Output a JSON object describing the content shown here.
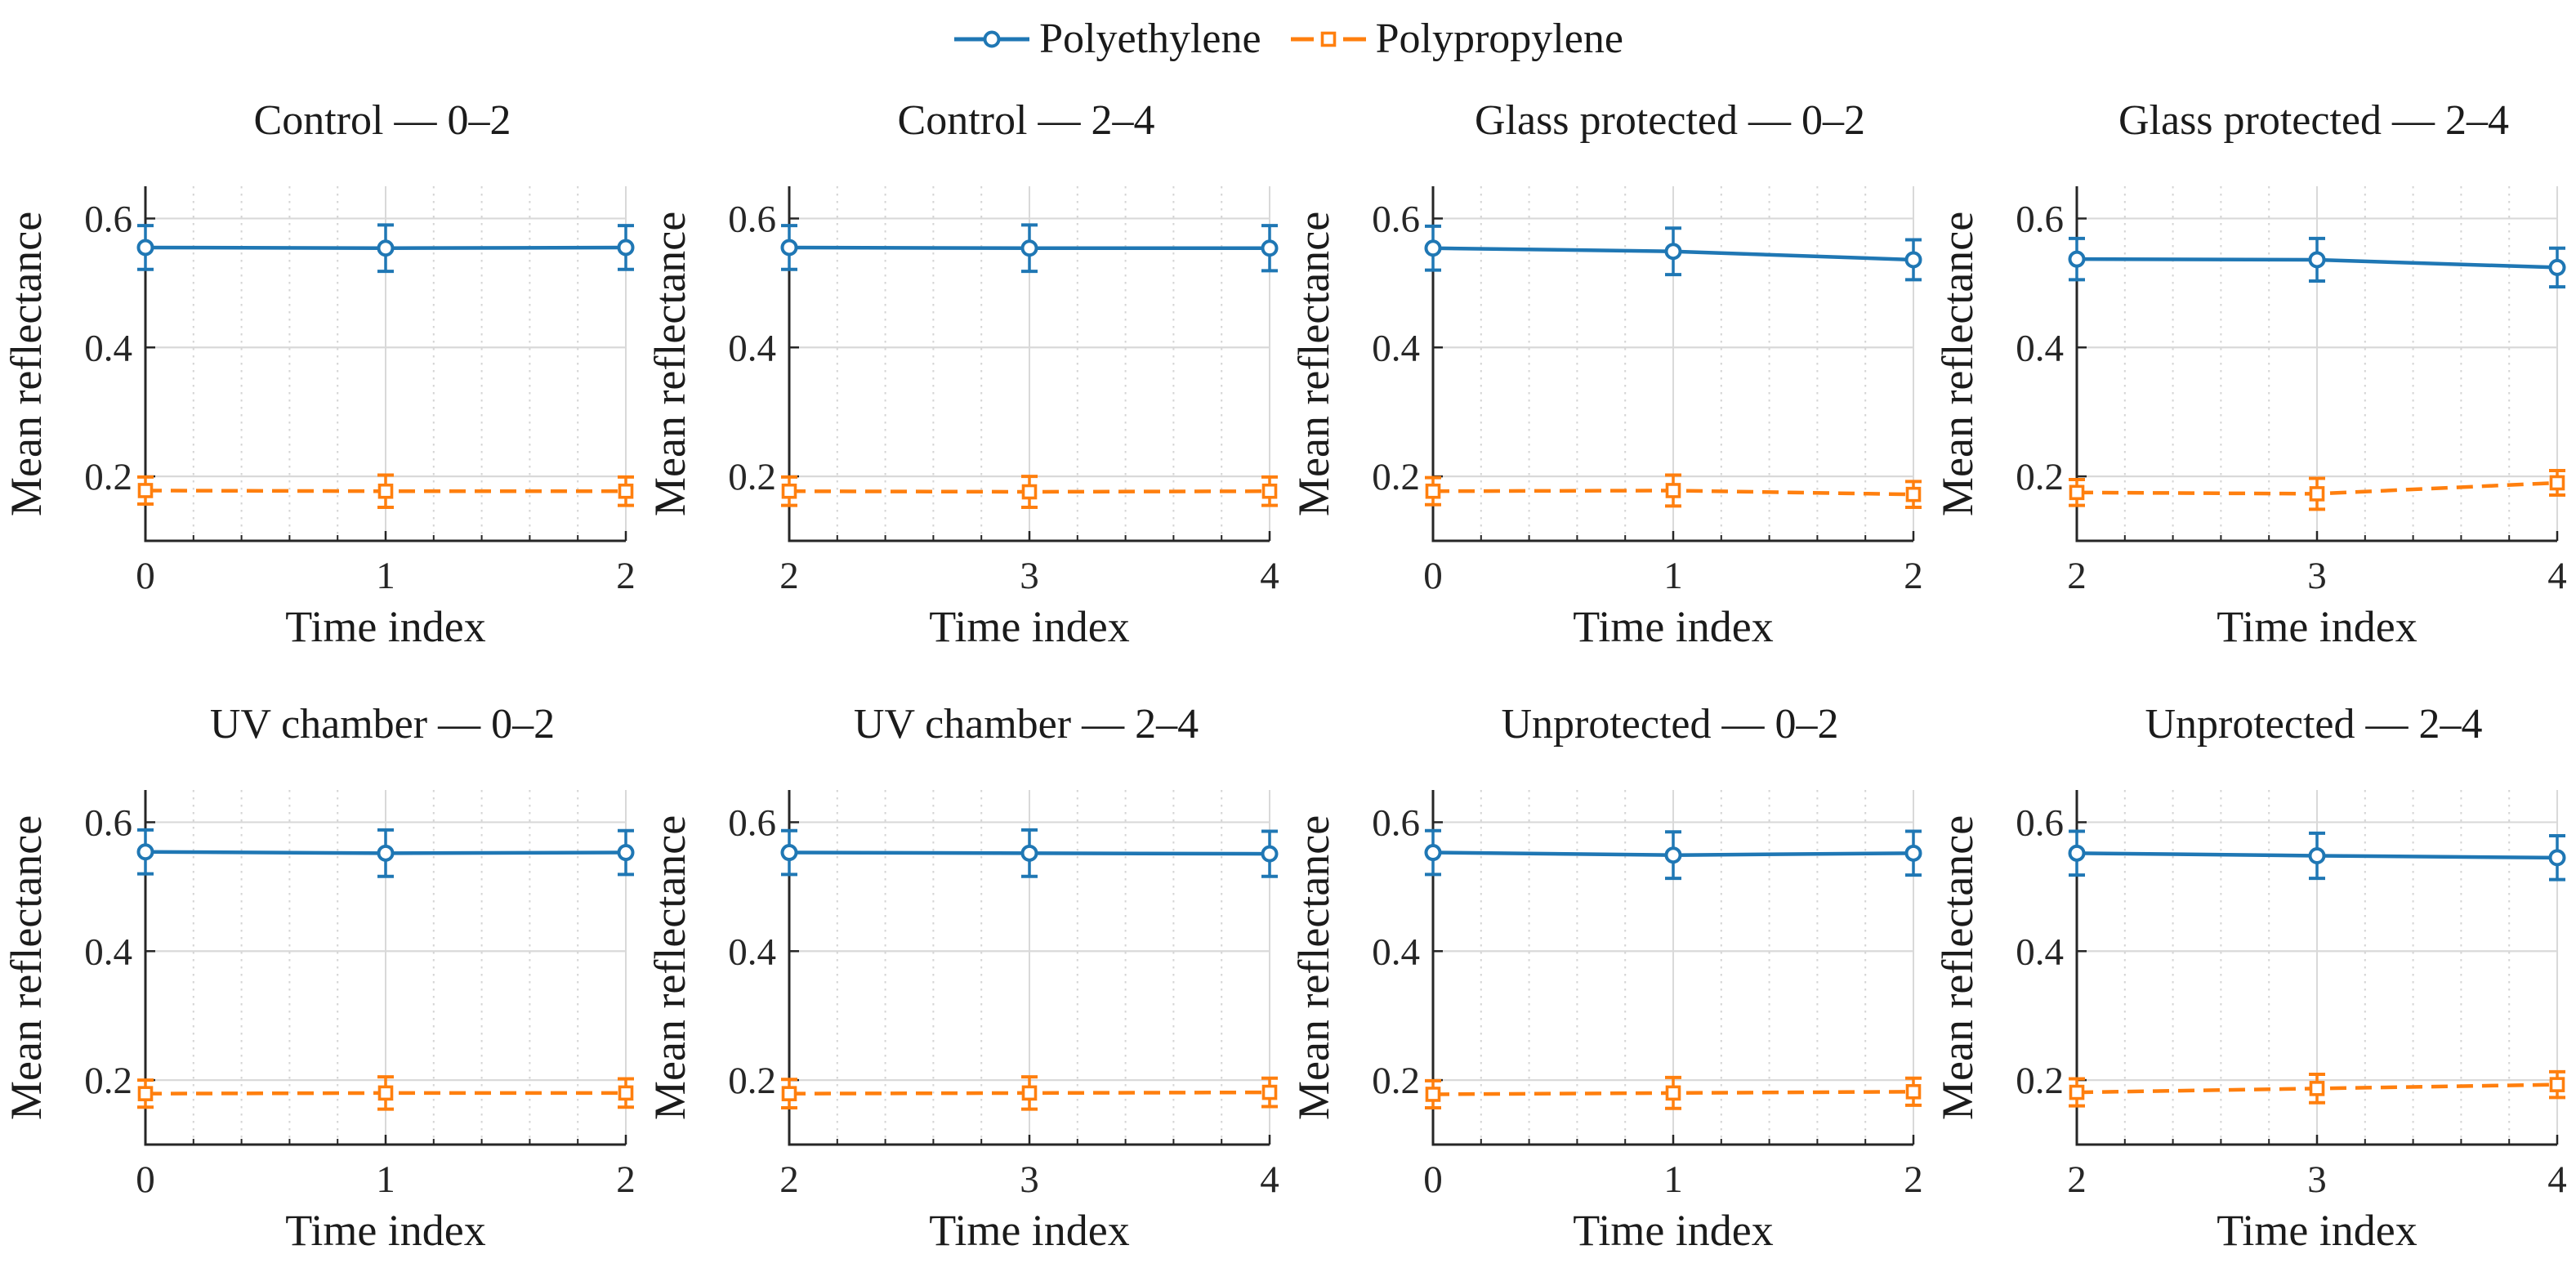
{
  "figure": {
    "background": "#ffffff",
    "text_color": "#1a1a1a",
    "grid_major_color": "#d9d9d9",
    "grid_minor_color": "#d4d4d4",
    "spine_color": "#262626"
  },
  "chart_data": {
    "type": "line",
    "layout": {
      "rows": 2,
      "cols": 4
    },
    "xlabel": "Time index",
    "ylabel": "Mean reflectance",
    "ylim": [
      0.1,
      0.65
    ],
    "yticks": [
      0.2,
      0.4,
      0.6
    ],
    "ytick_labels": [
      "0.2",
      "0.4",
      "0.6"
    ],
    "x_minor_step": 0.2,
    "grid": {
      "horizontal_major": "solid",
      "vertical_major": "solid",
      "vertical_minor": "dotted"
    },
    "legend": {
      "position": "top-center",
      "entries": [
        {
          "label": "Polyethylene",
          "color": "#1f77b4",
          "marker": "circle",
          "line": "solid"
        },
        {
          "label": "Polypropylene",
          "color": "#ff7f0e",
          "marker": "square",
          "line": "dashed"
        }
      ]
    },
    "panels": [
      {
        "title": "Control — 0–2",
        "xlim": [
          0,
          2
        ],
        "xticks": [
          0,
          1,
          2
        ],
        "xtick_labels": [
          "0",
          "1",
          "2"
        ],
        "series": [
          {
            "name": "Polyethylene",
            "x": [
              0,
              1,
              2
            ],
            "y": [
              0.555,
              0.554,
              0.555
            ],
            "yerr": [
              0.034,
              0.036,
              0.034
            ]
          },
          {
            "name": "Polypropylene",
            "x": [
              0,
              1,
              2
            ],
            "y": [
              0.178,
              0.177,
              0.177
            ],
            "yerr": [
              0.021,
              0.025,
              0.022
            ]
          }
        ]
      },
      {
        "title": "Control — 2–4",
        "xlim": [
          2,
          4
        ],
        "xticks": [
          2,
          3,
          4
        ],
        "xtick_labels": [
          "2",
          "3",
          "4"
        ],
        "series": [
          {
            "name": "Polyethylene",
            "x": [
              2,
              3,
              4
            ],
            "y": [
              0.555,
              0.554,
              0.554
            ],
            "yerr": [
              0.034,
              0.036,
              0.035
            ]
          },
          {
            "name": "Polypropylene",
            "x": [
              2,
              3,
              4
            ],
            "y": [
              0.177,
              0.176,
              0.177
            ],
            "yerr": [
              0.022,
              0.024,
              0.022
            ]
          }
        ]
      },
      {
        "title": "Glass protected — 0–2",
        "xlim": [
          0,
          2
        ],
        "xticks": [
          0,
          1,
          2
        ],
        "xtick_labels": [
          "0",
          "1",
          "2"
        ],
        "series": [
          {
            "name": "Polyethylene",
            "x": [
              0,
              1,
              2
            ],
            "y": [
              0.554,
              0.549,
              0.536
            ],
            "yerr": [
              0.034,
              0.036,
              0.031
            ]
          },
          {
            "name": "Polypropylene",
            "x": [
              0,
              1,
              2
            ],
            "y": [
              0.177,
              0.178,
              0.172
            ],
            "yerr": [
              0.021,
              0.024,
              0.02
            ]
          }
        ]
      },
      {
        "title": "Glass protected — 2–4",
        "xlim": [
          2,
          4
        ],
        "xticks": [
          2,
          3,
          4
        ],
        "xtick_labels": [
          "2",
          "3",
          "4"
        ],
        "series": [
          {
            "name": "Polyethylene",
            "x": [
              2,
              3,
              4
            ],
            "y": [
              0.537,
              0.536,
              0.524
            ],
            "yerr": [
              0.032,
              0.033,
              0.03
            ]
          },
          {
            "name": "Polypropylene",
            "x": [
              2,
              3,
              4
            ],
            "y": [
              0.175,
              0.173,
              0.19
            ],
            "yerr": [
              0.02,
              0.024,
              0.019
            ]
          }
        ]
      },
      {
        "title": "UV chamber — 0–2",
        "xlim": [
          0,
          2
        ],
        "xticks": [
          0,
          1,
          2
        ],
        "xtick_labels": [
          "0",
          "1",
          "2"
        ],
        "series": [
          {
            "name": "Polyethylene",
            "x": [
              0,
              1,
              2
            ],
            "y": [
              0.554,
              0.552,
              0.553
            ],
            "yerr": [
              0.034,
              0.036,
              0.034
            ]
          },
          {
            "name": "Polypropylene",
            "x": [
              0,
              1,
              2
            ],
            "y": [
              0.179,
              0.18,
              0.18
            ],
            "yerr": [
              0.021,
              0.025,
              0.022
            ]
          }
        ]
      },
      {
        "title": "UV chamber — 2–4",
        "xlim": [
          2,
          4
        ],
        "xticks": [
          2,
          3,
          4
        ],
        "xtick_labels": [
          "2",
          "3",
          "4"
        ],
        "series": [
          {
            "name": "Polyethylene",
            "x": [
              2,
              3,
              4
            ],
            "y": [
              0.553,
              0.552,
              0.551
            ],
            "yerr": [
              0.034,
              0.036,
              0.035
            ]
          },
          {
            "name": "Polypropylene",
            "x": [
              2,
              3,
              4
            ],
            "y": [
              0.179,
              0.18,
              0.181
            ],
            "yerr": [
              0.022,
              0.025,
              0.022
            ]
          }
        ]
      },
      {
        "title": "Unprotected — 0–2",
        "xlim": [
          0,
          2
        ],
        "xticks": [
          0,
          1,
          2
        ],
        "xtick_labels": [
          "0",
          "1",
          "2"
        ],
        "series": [
          {
            "name": "Polyethylene",
            "x": [
              0,
              1,
              2
            ],
            "y": [
              0.553,
              0.549,
              0.552
            ],
            "yerr": [
              0.034,
              0.036,
              0.034
            ]
          },
          {
            "name": "Polypropylene",
            "x": [
              0,
              1,
              2
            ],
            "y": [
              0.178,
              0.18,
              0.182
            ],
            "yerr": [
              0.021,
              0.024,
              0.021
            ]
          }
        ]
      },
      {
        "title": "Unprotected — 2–4",
        "xlim": [
          2,
          4
        ],
        "xticks": [
          2,
          3,
          4
        ],
        "xtick_labels": [
          "2",
          "3",
          "4"
        ],
        "series": [
          {
            "name": "Polyethylene",
            "x": [
              2,
              3,
              4
            ],
            "y": [
              0.552,
              0.548,
              0.545
            ],
            "yerr": [
              0.034,
              0.035,
              0.034
            ]
          },
          {
            "name": "Polypropylene",
            "x": [
              2,
              3,
              4
            ],
            "y": [
              0.181,
              0.187,
              0.193
            ],
            "yerr": [
              0.021,
              0.022,
              0.02
            ]
          }
        ]
      }
    ]
  }
}
